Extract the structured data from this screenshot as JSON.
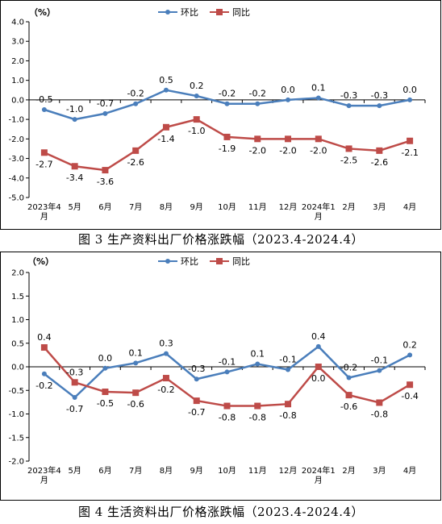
{
  "colors": {
    "mom": "#4a7ebb",
    "yoy": "#be4b48",
    "axis": "#000000",
    "border": "#000000"
  },
  "charts": [
    {
      "unit": "（%）",
      "caption": "图 3 生产资料出厂价格涨跌幅（2023.4-2024.4）",
      "legend": {
        "mom": "环比",
        "yoy": "同比"
      }
    },
    {
      "unit": "（%）",
      "caption": "图 4 生活资料出厂价格涨跌幅（2023.4-2024.4）",
      "legend": {
        "mom": "环比",
        "yoy": "同比"
      }
    }
  ],
  "chart_data": [
    {
      "type": "line",
      "title": "图 3 生产资料出厂价格涨跌幅（2023.4-2024.4）",
      "ylabel": "（%）",
      "categories": [
        "2023年4\n月",
        "5月",
        "6月",
        "7月",
        "8月",
        "9月",
        "10月",
        "11月",
        "12月",
        "2024年1\n月",
        "2月",
        "3月",
        "4月"
      ],
      "ylim": [
        -5.0,
        4.0
      ],
      "yticks": [
        "4.0",
        "3.0",
        "2.0",
        "1.0",
        "0.0",
        "-1.0",
        "-2.0",
        "-3.0",
        "-4.0",
        "-5.0"
      ],
      "ytick_values": [
        4,
        3,
        2,
        1,
        0,
        -1,
        -2,
        -3,
        -4,
        -5
      ],
      "grid": false,
      "legend_position": "top-center",
      "series": [
        {
          "name": "环比",
          "marker": "circle",
          "values": [
            -0.5,
            -1.0,
            -0.7,
            -0.2,
            0.5,
            0.2,
            -0.2,
            -0.2,
            0.0,
            0.1,
            -0.3,
            -0.3,
            0.0
          ],
          "labels": [
            "-0.5",
            "-1.0",
            "-0.7",
            "-0.2",
            "0.5",
            "0.2",
            "-0.2",
            "-0.2",
            "0.0",
            "0.1",
            "-0.3",
            "-0.3",
            "0.0"
          ],
          "label_pos": "above"
        },
        {
          "name": "同比",
          "marker": "square",
          "values": [
            -2.7,
            -3.4,
            -3.6,
            -2.6,
            -1.4,
            -1.0,
            -1.9,
            -2.0,
            -2.0,
            -2.0,
            -2.5,
            -2.6,
            -2.1
          ],
          "labels": [
            "-2.7",
            "-3.4",
            "-3.6",
            "-2.6",
            "-1.4",
            "-1.0",
            "-1.9",
            "-2.0",
            "-2.0",
            "-2.0",
            "-2.5",
            "-2.6",
            "-2.1"
          ],
          "label_pos": "below"
        }
      ]
    },
    {
      "type": "line",
      "title": "图 4 生活资料出厂价格涨跌幅（2023.4-2024.4）",
      "ylabel": "（%）",
      "categories": [
        "2023年4\n月",
        "5月",
        "6月",
        "7月",
        "8月",
        "9月",
        "10月",
        "11月",
        "12月",
        "2024年1\n月",
        "2月",
        "3月",
        "4月"
      ],
      "ylim": [
        -2.0,
        2.0
      ],
      "yticks": [
        "2.0",
        "1.5",
        "1.0",
        "0.5",
        "0.0",
        "-0.5",
        "-1.0",
        "-1.5",
        "-2.0"
      ],
      "ytick_values": [
        2,
        1.5,
        1,
        0.5,
        0,
        -0.5,
        -1,
        -1.5,
        -2
      ],
      "grid": false,
      "legend_position": "top-center",
      "series": [
        {
          "name": "环比",
          "marker": "circle",
          "values": [
            -0.15,
            -0.65,
            -0.03,
            0.08,
            0.28,
            -0.26,
            -0.11,
            0.06,
            -0.06,
            0.43,
            -0.23,
            -0.08,
            0.25
          ],
          "labels": [
            "-0.2",
            "-0.7",
            "0.0",
            "0.1",
            "0.3",
            "-0.3",
            "-0.1",
            "0.1",
            "-0.1",
            "0.4",
            "-0.2",
            "-0.1",
            "0.2"
          ],
          "label_pos": [
            "below",
            "below",
            "above",
            "above",
            "above",
            "above",
            "above",
            "above",
            "above",
            "above",
            "above",
            "above",
            "above"
          ]
        },
        {
          "name": "同比",
          "marker": "square",
          "values": [
            0.41,
            -0.33,
            -0.53,
            -0.55,
            -0.24,
            -0.72,
            -0.83,
            -0.83,
            -0.79,
            0.0,
            -0.6,
            -0.76,
            -0.38
          ],
          "labels": [
            "0.4",
            "-0.3",
            "-0.5",
            "-0.6",
            "-0.2",
            "-0.7",
            "-0.8",
            "-0.8",
            "-0.8",
            "0.0",
            "-0.6",
            "-0.8",
            "-0.4"
          ],
          "label_pos": [
            "above",
            "above",
            "below",
            "below",
            "below",
            "below",
            "below",
            "below",
            "below",
            "below",
            "below",
            "below",
            "below"
          ]
        }
      ]
    }
  ]
}
